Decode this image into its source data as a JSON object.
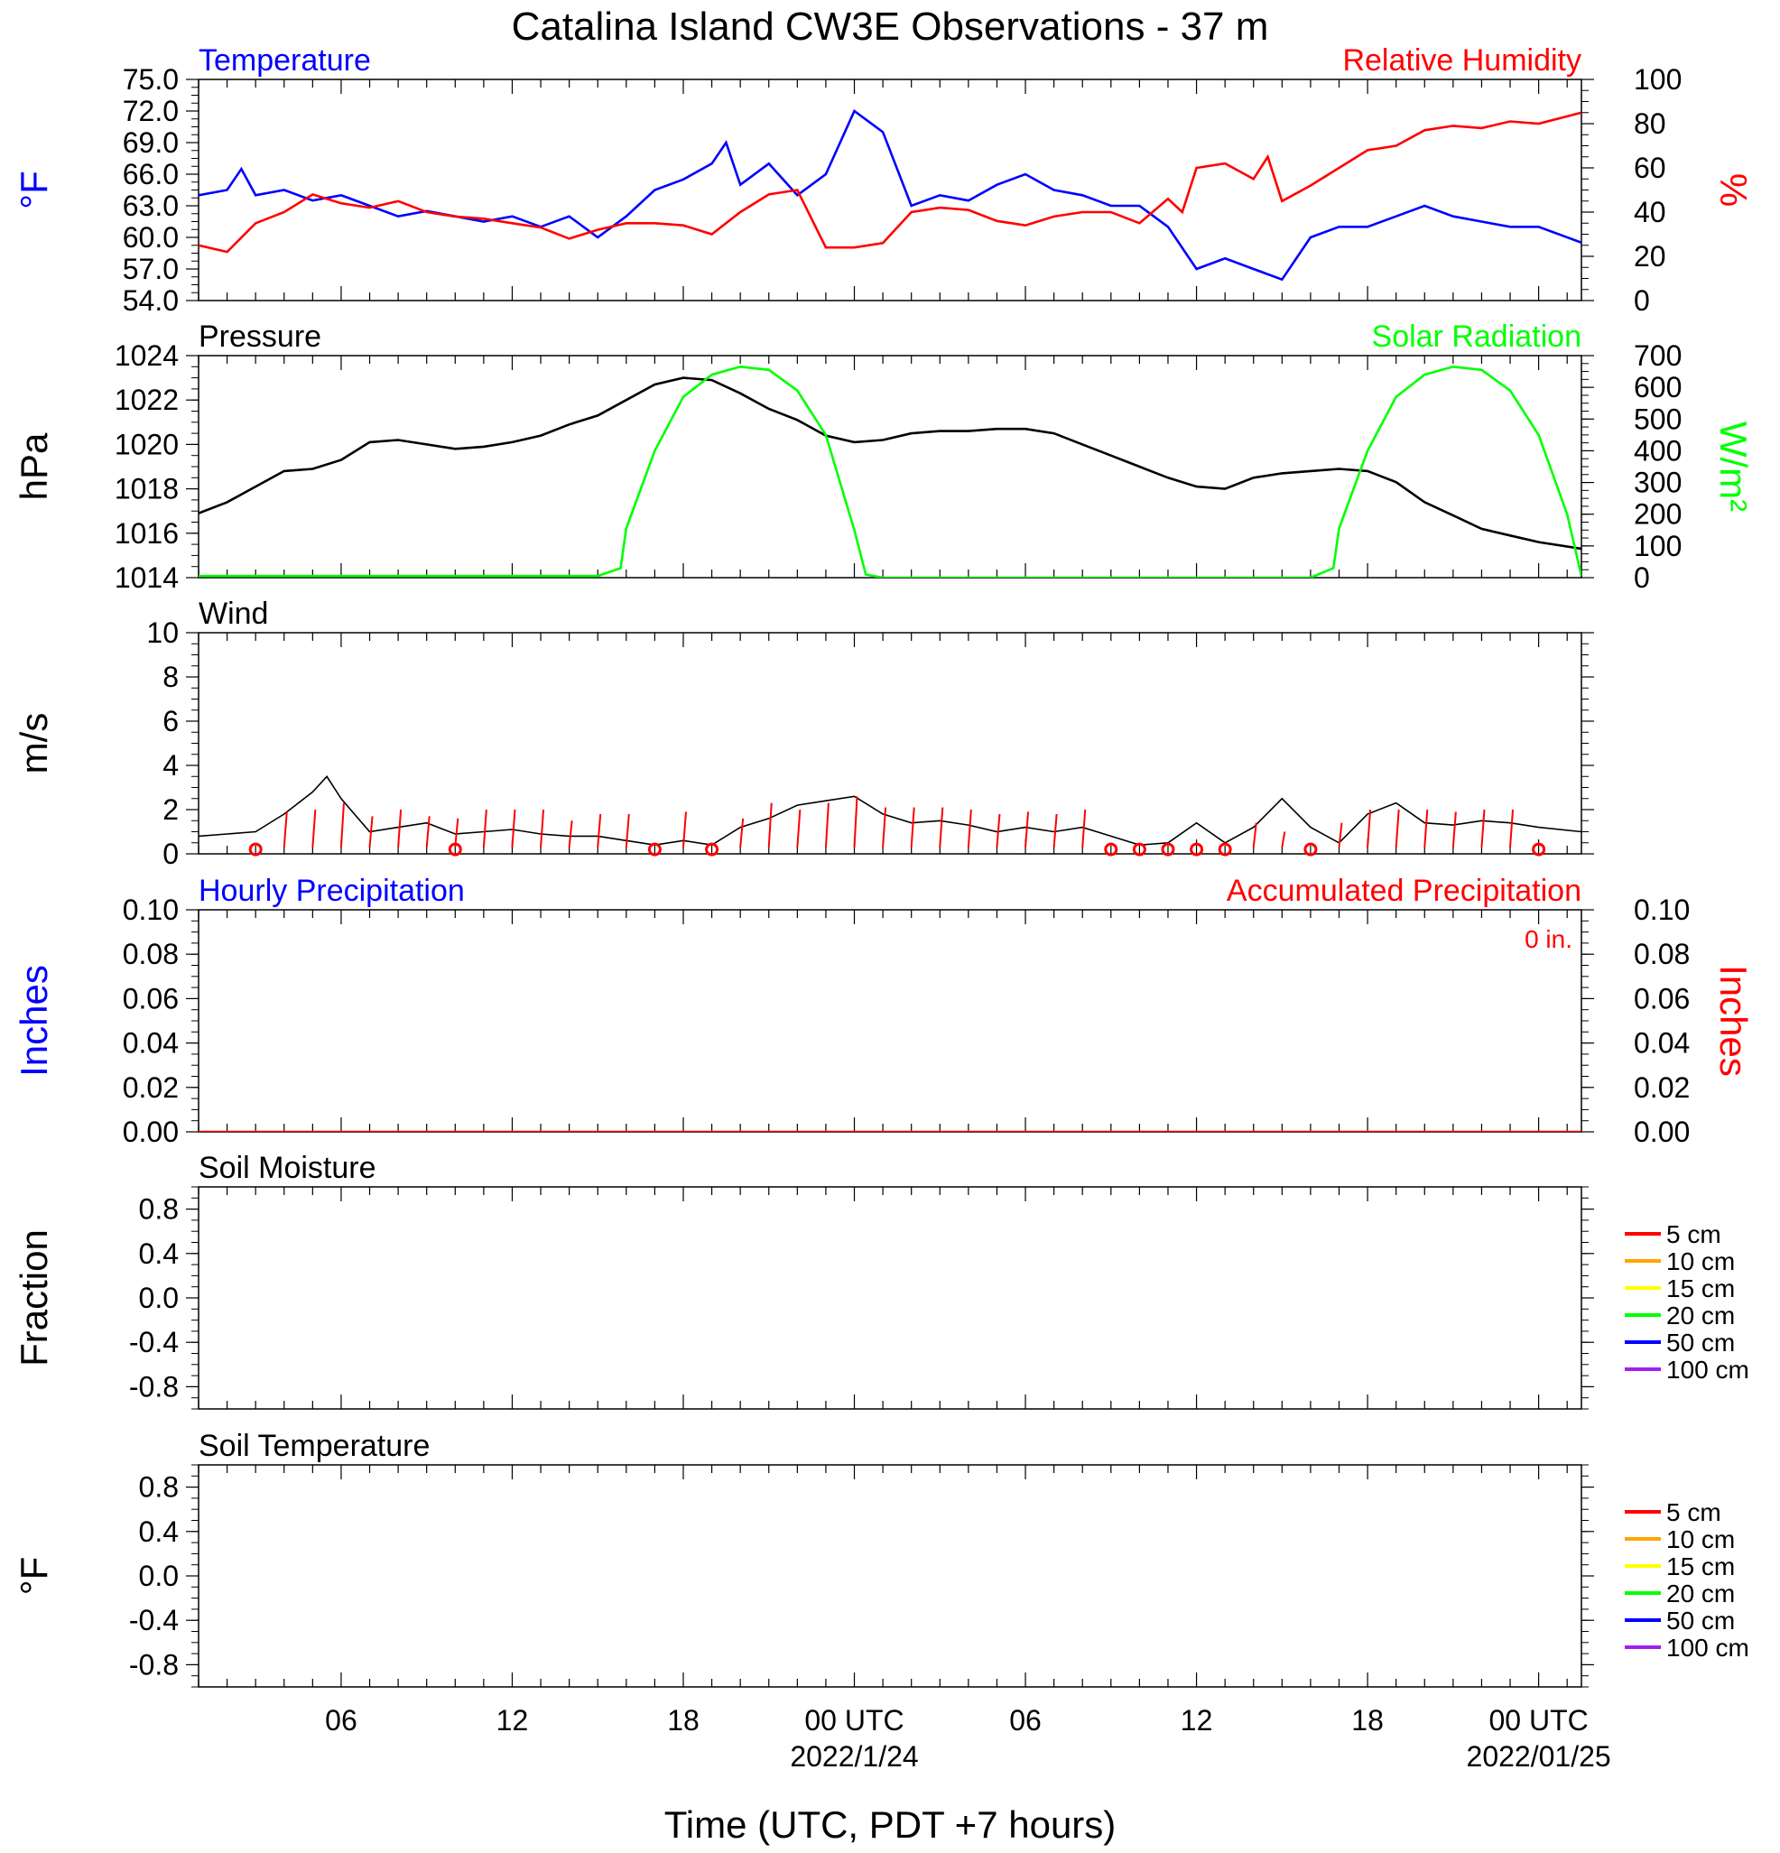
{
  "figure": {
    "title": "Catalina Island CW3E Observations - 37 m",
    "xlabel": "Time (UTC, PDT +7 hours)",
    "x_ticks": [
      {
        "hour": 6,
        "label": "06"
      },
      {
        "hour": 12,
        "label": "12"
      },
      {
        "hour": 18,
        "label": "18"
      },
      {
        "hour": 24,
        "label": "00 UTC",
        "date": "2022/1/24"
      },
      {
        "hour": 30,
        "label": "06"
      },
      {
        "hour": 36,
        "label": "12"
      },
      {
        "hour": 42,
        "label": "18"
      },
      {
        "hour": 48,
        "label": "00 UTC",
        "date": "2022/01/25"
      }
    ]
  },
  "chart_data": [
    {
      "type": "line",
      "panel": "temperature-humidity",
      "title_left": "Temperature",
      "title_right": "Relative Humidity",
      "ylabel": "°F",
      "ylabel_right": "%",
      "xlim": [
        1,
        49.5
      ],
      "ylim": [
        54,
        75
      ],
      "ylim_right": [
        0,
        100
      ],
      "yticks": [
        "54.0",
        "57.0",
        "60.0",
        "63.0",
        "66.0",
        "69.0",
        "72.0",
        "75.0"
      ],
      "yticks_right": [
        "0",
        "20",
        "40",
        "60",
        "80",
        "100"
      ],
      "colors": {
        "left": "#0000ff",
        "right": "#ff0000"
      },
      "series": [
        {
          "axis": "left",
          "color": "#0000ff",
          "x": [
            1,
            2,
            2.5,
            3,
            4,
            5,
            6,
            7,
            8,
            9,
            10,
            11,
            12,
            13,
            14,
            15,
            16,
            17,
            18,
            19,
            19.5,
            20,
            21,
            22,
            23,
            24,
            25,
            26,
            27,
            28,
            29,
            30,
            31,
            32,
            33,
            34,
            35,
            36,
            37,
            38,
            39,
            40,
            41,
            42,
            43,
            44,
            45,
            46,
            47,
            48,
            49.5
          ],
          "y": [
            64,
            64.5,
            66.5,
            64,
            64.5,
            63.5,
            64,
            63,
            62,
            62.5,
            62,
            61.5,
            62,
            61,
            62,
            60,
            62,
            64.5,
            65.5,
            67,
            69,
            65,
            67,
            64,
            66,
            72,
            70,
            63,
            64,
            63.5,
            65,
            66,
            64.5,
            64,
            63,
            63,
            61,
            57,
            58,
            57,
            56,
            60,
            61,
            61,
            62,
            63,
            62,
            61.5,
            61,
            61,
            59.5
          ]
        },
        {
          "axis": "right",
          "color": "#ff0000",
          "x": [
            1,
            2,
            3,
            4,
            5,
            6,
            7,
            8,
            9,
            10,
            11,
            12,
            13,
            14,
            15,
            16,
            17,
            18,
            19,
            20,
            21,
            22,
            23,
            24,
            25,
            26,
            27,
            28,
            29,
            30,
            31,
            32,
            33,
            34,
            35,
            35.5,
            36,
            37,
            38,
            38.5,
            39,
            40,
            41,
            42,
            43,
            44,
            45,
            46,
            47,
            48,
            49.5
          ],
          "y": [
            25,
            22,
            35,
            40,
            48,
            44,
            42,
            45,
            40,
            38,
            37,
            35,
            33,
            28,
            32,
            35,
            35,
            34,
            30,
            40,
            48,
            50,
            24,
            24,
            26,
            40,
            42,
            41,
            36,
            34,
            38,
            40,
            40,
            35,
            46,
            40,
            60,
            62,
            55,
            65,
            45,
            52,
            60,
            68,
            70,
            77,
            79,
            78,
            81,
            80,
            85
          ]
        }
      ]
    },
    {
      "type": "line",
      "panel": "pressure-solar",
      "title_left": "Pressure",
      "title_right": "Solar Radiation",
      "ylabel": "hPa",
      "ylabel_right": "W/m²",
      "xlim": [
        1,
        49.5
      ],
      "ylim": [
        1014,
        1024
      ],
      "ylim_right": [
        0,
        700
      ],
      "yticks": [
        "1014",
        "1016",
        "1018",
        "1020",
        "1022",
        "1024"
      ],
      "yticks_right": [
        "0",
        "100",
        "200",
        "300",
        "400",
        "500",
        "600",
        "700"
      ],
      "colors": {
        "left": "#000000",
        "right": "#00ff00"
      },
      "series": [
        {
          "axis": "left",
          "color": "#000000",
          "x": [
            1,
            2,
            3,
            4,
            5,
            6,
            7,
            8,
            9,
            10,
            11,
            12,
            13,
            14,
            15,
            16,
            17,
            18,
            19,
            20,
            21,
            22,
            23,
            24,
            25,
            26,
            27,
            28,
            29,
            30,
            31,
            32,
            33,
            34,
            35,
            36,
            37,
            38,
            39,
            40,
            41,
            42,
            43,
            44,
            45,
            46,
            47,
            48,
            49.5
          ],
          "y": [
            1016.9,
            1017.4,
            1018.1,
            1018.8,
            1018.9,
            1019.3,
            1020.1,
            1020.2,
            1020.0,
            1019.8,
            1019.9,
            1020.1,
            1020.4,
            1020.9,
            1021.3,
            1022.0,
            1022.7,
            1023.0,
            1022.9,
            1022.3,
            1021.6,
            1021.1,
            1020.4,
            1020.1,
            1020.2,
            1020.5,
            1020.6,
            1020.6,
            1020.7,
            1020.7,
            1020.5,
            1020.0,
            1019.5,
            1019.0,
            1018.5,
            1018.1,
            1018.0,
            1018.5,
            1018.7,
            1018.8,
            1018.9,
            1018.8,
            1018.3,
            1017.4,
            1016.8,
            1016.2,
            1015.9,
            1015.6,
            1015.3
          ]
        },
        {
          "axis": "right",
          "color": "#00ff00",
          "x": [
            1,
            15,
            15.8,
            16,
            17,
            18,
            19,
            20,
            21,
            22,
            23,
            24,
            24.4,
            25,
            40,
            40.8,
            41,
            42,
            43,
            44,
            45,
            46,
            47,
            48,
            49,
            49.5
          ],
          "y": [
            5,
            5,
            30,
            155,
            400,
            570,
            640,
            665,
            655,
            590,
            450,
            150,
            10,
            0,
            0,
            30,
            155,
            400,
            570,
            640,
            665,
            655,
            590,
            450,
            200,
            5
          ]
        }
      ]
    },
    {
      "type": "line",
      "panel": "wind",
      "title": "Wind",
      "ylabel": "m/s",
      "xlim": [
        1,
        49.5
      ],
      "ylim": [
        0,
        10
      ],
      "yticks": [
        "0",
        "2",
        "4",
        "6",
        "8",
        "10"
      ],
      "series": [
        {
          "color": "#000000",
          "x": [
            1,
            2,
            3,
            4,
            5,
            5.5,
            6,
            7,
            8,
            9,
            10,
            11,
            12,
            13,
            14,
            15,
            16,
            17,
            18,
            19,
            20,
            21,
            22,
            23,
            24,
            25,
            26,
            27,
            28,
            29,
            30,
            31,
            32,
            33,
            34,
            35,
            36,
            37,
            38,
            39,
            40,
            41,
            42,
            43,
            44,
            45,
            46,
            47,
            48,
            49.5
          ],
          "y": [
            0.8,
            0.9,
            1.0,
            1.8,
            2.8,
            3.5,
            2.5,
            1.0,
            1.2,
            1.4,
            0.9,
            1.0,
            1.1,
            0.9,
            0.8,
            0.8,
            0.6,
            0.4,
            0.6,
            0.4,
            1.2,
            1.6,
            2.2,
            2.4,
            2.6,
            1.8,
            1.4,
            1.5,
            1.3,
            1.0,
            1.2,
            1.0,
            1.2,
            0.8,
            0.4,
            0.5,
            1.4,
            0.5,
            1.2,
            2.5,
            1.2,
            0.5,
            1.8,
            2.3,
            1.4,
            1.3,
            1.5,
            1.4,
            1.2,
            1.0
          ]
        }
      ],
      "calm_markers_hours": [
        3,
        10,
        17,
        19,
        33,
        34,
        35,
        36,
        37,
        40,
        48
      ],
      "barb_hours": [
        4,
        5,
        6,
        7,
        8,
        9,
        10,
        11,
        12,
        13,
        14,
        15,
        16,
        18,
        20,
        21,
        22,
        23,
        24,
        25,
        26,
        27,
        28,
        29,
        30,
        31,
        32,
        38,
        39,
        41,
        42,
        43,
        44,
        45,
        46,
        47
      ],
      "barb_lengths": [
        1.6,
        1.7,
        2.0,
        1.4,
        1.7,
        1.4,
        1.3,
        1.7,
        1.7,
        1.7,
        1.2,
        1.5,
        1.5,
        1.6,
        1.3,
        2.0,
        1.7,
        2.0,
        2.3,
        1.8,
        1.8,
        1.8,
        1.7,
        1.5,
        1.6,
        1.5,
        1.7,
        1.1,
        0.7,
        1.1,
        1.7,
        1.7,
        1.7,
        1.6,
        1.7,
        1.7
      ]
    },
    {
      "type": "line",
      "panel": "precipitation",
      "title_left": "Hourly Precipitation",
      "title_right": "Accumulated Precipitation",
      "annotation": "0 in.",
      "ylabel": "Inches",
      "ylabel_right": "Inches",
      "xlim": [
        1,
        49.5
      ],
      "ylim": [
        0,
        0.1
      ],
      "ylim_right": [
        0,
        0.1
      ],
      "yticks": [
        "0.00",
        "0.02",
        "0.04",
        "0.06",
        "0.08",
        "0.10"
      ],
      "yticks_right": [
        "0.00",
        "0.02",
        "0.04",
        "0.06",
        "0.08",
        "0.10"
      ],
      "colors": {
        "left": "#0000ff",
        "right": "#ff0000"
      },
      "series": [
        {
          "axis": "right",
          "color": "#ff0000",
          "x": [
            1,
            49.5
          ],
          "y": [
            0,
            0
          ]
        }
      ]
    },
    {
      "type": "line",
      "panel": "soil-moisture",
      "title": "Soil Moisture",
      "ylabel": "Fraction",
      "xlim": [
        1,
        49.5
      ],
      "ylim": [
        -1,
        1
      ],
      "yticks": [
        "-0.8",
        "-0.4",
        "0.0",
        "0.4",
        "0.8"
      ],
      "legend": [
        {
          "label": "5 cm",
          "color": "#ff0000"
        },
        {
          "label": "10 cm",
          "color": "#ffa500"
        },
        {
          "label": "15 cm",
          "color": "#ffff00"
        },
        {
          "label": "20 cm",
          "color": "#00ff00"
        },
        {
          "label": "50 cm",
          "color": "#0000ff"
        },
        {
          "label": "100 cm",
          "color": "#a020f0"
        }
      ],
      "series": []
    },
    {
      "type": "line",
      "panel": "soil-temperature",
      "title": "Soil Temperature",
      "ylabel": "°F",
      "xlim": [
        1,
        49.5
      ],
      "ylim": [
        -1,
        1
      ],
      "yticks": [
        "-0.8",
        "-0.4",
        "0.0",
        "0.4",
        "0.8"
      ],
      "legend": [
        {
          "label": "5 cm",
          "color": "#ff0000"
        },
        {
          "label": "10 cm",
          "color": "#ffa500"
        },
        {
          "label": "15 cm",
          "color": "#ffff00"
        },
        {
          "label": "20 cm",
          "color": "#00ff00"
        },
        {
          "label": "50 cm",
          "color": "#0000ff"
        },
        {
          "label": "100 cm",
          "color": "#a020f0"
        }
      ],
      "series": []
    }
  ]
}
